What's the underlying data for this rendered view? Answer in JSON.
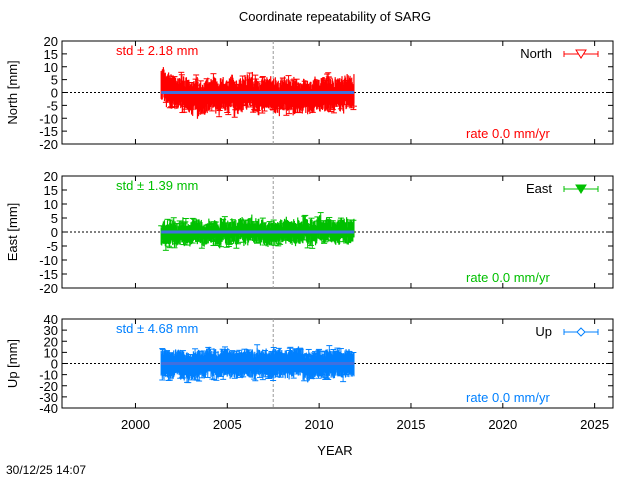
{
  "chart_data": {
    "type": "scatter",
    "title": "Coordinate repeatability of SARG",
    "xlabel": "YEAR",
    "xlim": [
      1996,
      2026
    ],
    "xticks": [
      2000,
      2005,
      2010,
      2015,
      2020,
      2025
    ],
    "reference_line_x": 2007.5,
    "timestamp": "30/12/25 14:07",
    "panels": [
      {
        "name": "North",
        "ylabel": "North [mm]",
        "color": "#ff0000",
        "ylim": [
          -20,
          20
        ],
        "yticks": [
          20,
          15,
          10,
          5,
          0,
          -5,
          -10,
          -15,
          -20
        ],
        "std_label": "std ± 2.18 mm",
        "rate_label": "rate  0.0 mm/yr",
        "legend": "North",
        "marker": "triangle-down-open",
        "x": [
          2001.5,
          2001.75,
          2002,
          2002.25,
          2002.5,
          2002.75,
          2003,
          2003.25,
          2003.5,
          2003.75,
          2004,
          2004.25,
          2004.5,
          2004.75,
          2005,
          2005.25,
          2005.5,
          2005.75,
          2006,
          2006.25,
          2006.5,
          2006.75,
          2007,
          2007.25,
          2007.5,
          2007.75,
          2008,
          2008.25,
          2008.5,
          2008.75,
          2009,
          2009.25,
          2009.5,
          2009.75,
          2010,
          2010.25,
          2010.5,
          2010.75,
          2011,
          2011.25,
          2011.5,
          2011.75
        ],
        "values": [
          3,
          1,
          0,
          -1,
          0,
          -1,
          -2,
          -1,
          -3,
          -2,
          -1,
          0,
          -2,
          -1,
          -1,
          0,
          -2,
          -1,
          0,
          1,
          -1,
          -2,
          -1,
          0,
          -1,
          -2,
          -1,
          -1,
          -2,
          -1,
          -2,
          -1,
          -2,
          -1,
          -1,
          0,
          -1,
          -1,
          0,
          -1,
          0,
          0
        ],
        "spread": 6
      },
      {
        "name": "East",
        "ylabel": "East [mm]",
        "color": "#00c000",
        "ylim": [
          -20,
          20
        ],
        "yticks": [
          20,
          15,
          10,
          5,
          0,
          -5,
          -10,
          -15,
          -20
        ],
        "std_label": "std ± 1.39 mm",
        "rate_label": "rate  0.0 mm/yr",
        "legend": "East",
        "marker": "triangle-down-filled",
        "x": [
          2001.5,
          2001.75,
          2002,
          2002.25,
          2002.5,
          2002.75,
          2003,
          2003.25,
          2003.5,
          2003.75,
          2004,
          2004.25,
          2004.5,
          2004.75,
          2005,
          2005.25,
          2005.5,
          2005.75,
          2006,
          2006.25,
          2006.5,
          2006.75,
          2007,
          2007.25,
          2007.5,
          2007.75,
          2008,
          2008.25,
          2008.5,
          2008.75,
          2009,
          2009.25,
          2009.5,
          2009.75,
          2010,
          2010.25,
          2010.5,
          2010.75,
          2011,
          2011.25,
          2011.5,
          2011.75
        ],
        "values": [
          -1,
          -1,
          0,
          -1,
          0,
          -1,
          -1,
          0,
          0,
          -1,
          0,
          0,
          -1,
          0,
          0,
          0,
          0,
          1,
          0,
          1,
          0,
          0,
          0,
          -1,
          0,
          0,
          0,
          1,
          0,
          0,
          0,
          1,
          0,
          0,
          1,
          0,
          1,
          0,
          0,
          1,
          0,
          0
        ],
        "spread": 4
      },
      {
        "name": "Up",
        "ylabel": "Up [mm]",
        "color": "#0080ff",
        "ylim": [
          -40,
          40
        ],
        "yticks": [
          40,
          30,
          20,
          10,
          0,
          -10,
          -20,
          -30,
          -40
        ],
        "std_label": "std ± 4.68 mm",
        "rate_label": "rate  0.0 mm/yr",
        "legend": "Up",
        "marker": "diamond-open",
        "x": [
          2001.5,
          2001.75,
          2002,
          2002.25,
          2002.5,
          2002.75,
          2003,
          2003.25,
          2003.5,
          2003.75,
          2004,
          2004.25,
          2004.5,
          2004.75,
          2005,
          2005.25,
          2005.5,
          2005.75,
          2006,
          2006.25,
          2006.5,
          2006.75,
          2007,
          2007.25,
          2007.5,
          2007.75,
          2008,
          2008.25,
          2008.5,
          2008.75,
          2009,
          2009.25,
          2009.5,
          2009.75,
          2010,
          2010.25,
          2010.5,
          2010.75,
          2011,
          2011.25,
          2011.5,
          2011.75
        ],
        "values": [
          -1,
          0,
          -2,
          0,
          -1,
          -2,
          -3,
          -1,
          0,
          -2,
          1,
          0,
          -2,
          0,
          1,
          0,
          -1,
          0,
          1,
          0,
          -1,
          1,
          0,
          -1,
          0,
          1,
          0,
          -1,
          0,
          1,
          2,
          -2,
          -3,
          -1,
          0,
          -1,
          0,
          -1,
          1,
          0,
          -1,
          0
        ],
        "spread": 12
      }
    ]
  }
}
